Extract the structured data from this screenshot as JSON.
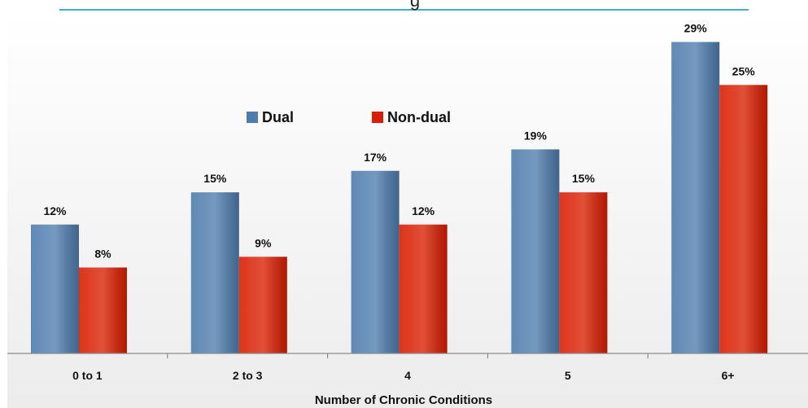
{
  "chart_data": {
    "type": "bar",
    "title": "g",
    "xlabel": "Number of Chronic Conditions",
    "ylabel": "",
    "categories": [
      "0 to 1",
      "2 to 3",
      "4",
      "5",
      "6+"
    ],
    "series": [
      {
        "name": "Dual",
        "values": [
          12,
          15,
          17,
          19,
          29
        ],
        "labels": [
          "12%",
          "15%",
          "17%",
          "19%",
          "29%"
        ],
        "color": "#4e7cad"
      },
      {
        "name": "Non-dual",
        "values": [
          8,
          9,
          12,
          15,
          25
        ],
        "labels": [
          "8%",
          "9%",
          "12%",
          "15%",
          "25%"
        ],
        "color": "#d91e00"
      }
    ],
    "ylim": [
      0,
      32
    ],
    "grid": false,
    "legend_position": "top-center",
    "colors": {
      "title_rule": "#45b0c5",
      "axis": "#8a8a8a",
      "background_top": "#ffffff",
      "background_bottom": "#ececec"
    }
  }
}
